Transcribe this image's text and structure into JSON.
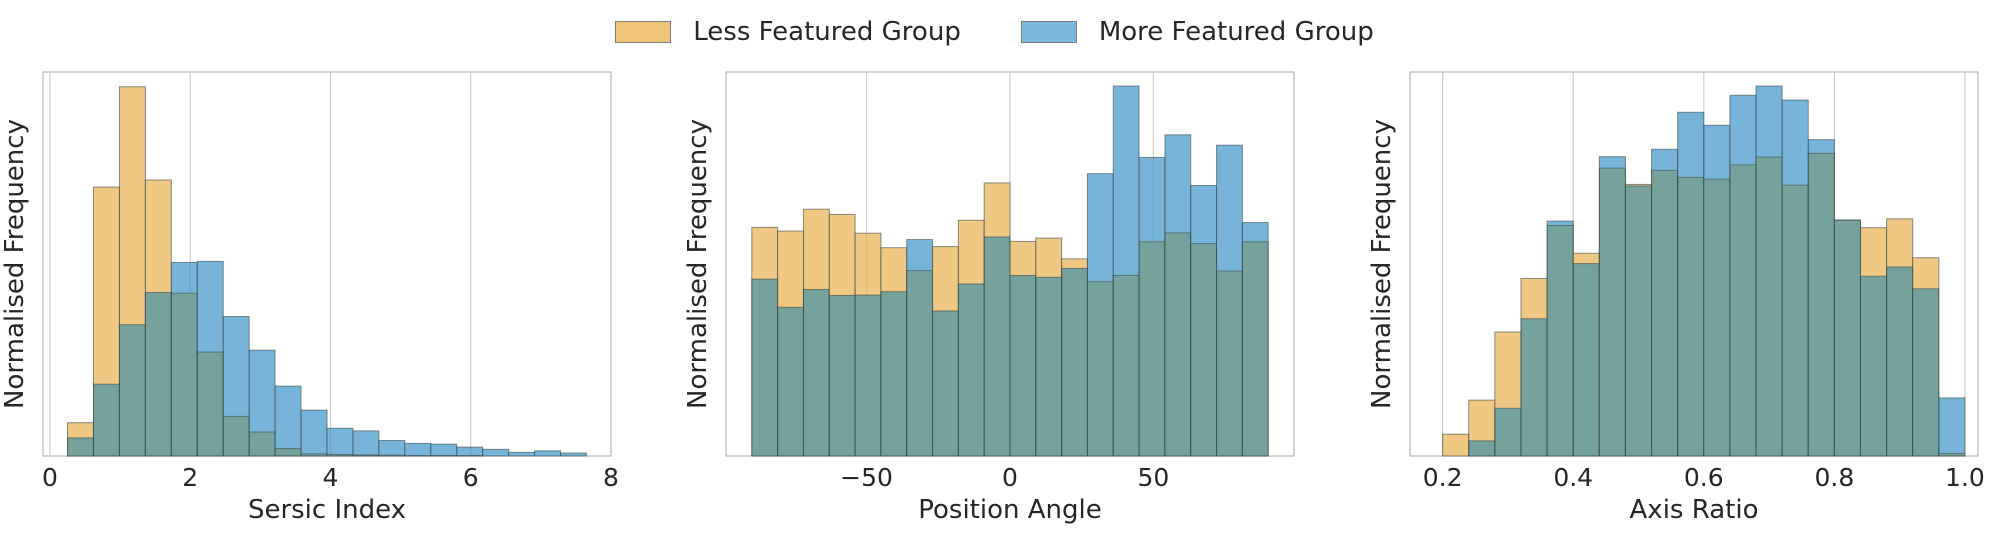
{
  "legend": {
    "less_label": "Less Featured Group",
    "more_label": "More Featured Group"
  },
  "colors": {
    "less": "#e8b04f",
    "more": "#3d94c9",
    "overlap": "#75a29c",
    "bar_edge": "#3c4a48",
    "grid": "#cccccc",
    "frame": "#b8b8b8"
  },
  "chart_data": [
    {
      "type": "bar",
      "xlabel": "Sersic Index",
      "ylabel": "Normalised Frequency",
      "xlim": [
        -0.1,
        8.0
      ],
      "ylim": [
        0,
        1.0
      ],
      "xticks": [
        0,
        2,
        4,
        6,
        8
      ],
      "xtick_labels": [
        "0",
        "2",
        "4",
        "6",
        "8"
      ],
      "grid": "vertical",
      "bin_edges": [
        0.25,
        0.62,
        0.99,
        1.36,
        1.73,
        2.1,
        2.47,
        2.84,
        3.21,
        3.58,
        3.95,
        4.32,
        4.69,
        5.06,
        5.43,
        5.8,
        6.17,
        6.54,
        6.91,
        7.28,
        7.65
      ],
      "series": [
        {
          "name": "Less Featured Group",
          "values": [
            0.09,
            0.727,
            0.998,
            0.746,
            0.44,
            0.281,
            0.107,
            0.065,
            0.02,
            0.006,
            0.004,
            0.003,
            0.002,
            0.001,
            0.001,
            0.001,
            0.0,
            0.0,
            0.0,
            0.0
          ]
        },
        {
          "name": "More Featured Group",
          "values": [
            0.049,
            0.194,
            0.355,
            0.442,
            0.523,
            0.526,
            0.377,
            0.286,
            0.189,
            0.124,
            0.075,
            0.068,
            0.042,
            0.034,
            0.032,
            0.024,
            0.018,
            0.01,
            0.014,
            0.008
          ]
        }
      ]
    },
    {
      "type": "bar",
      "xlabel": "Position Angle",
      "ylabel": "Normalised Frequency",
      "xlim": [
        -99,
        99
      ],
      "ylim": [
        0,
        1.0
      ],
      "xticks": [
        -50,
        0,
        50
      ],
      "xtick_labels": [
        "−50",
        "0",
        "50"
      ],
      "grid": "vertical",
      "bin_edges": [
        -90,
        -81,
        -72,
        -63,
        -54,
        -45,
        -36,
        -27,
        -18,
        -9,
        0,
        9,
        18,
        27,
        36,
        45,
        54,
        63,
        72,
        81,
        90
      ],
      "series": [
        {
          "name": "Less Featured Group",
          "values": [
            0.618,
            0.608,
            0.667,
            0.653,
            0.602,
            0.563,
            0.501,
            0.566,
            0.637,
            0.738,
            0.58,
            0.589,
            0.533,
            0.471,
            0.488,
            0.579,
            0.603,
            0.574,
            0.5,
            0.579
          ]
        },
        {
          "name": "More Featured Group",
          "values": [
            0.478,
            0.402,
            0.45,
            0.434,
            0.435,
            0.444,
            0.585,
            0.392,
            0.465,
            0.592,
            0.488,
            0.483,
            0.507,
            0.763,
            1.0,
            0.807,
            0.868,
            0.731,
            0.84,
            0.631
          ]
        }
      ]
    },
    {
      "type": "bar",
      "xlabel": "Axis Ratio",
      "ylabel": "Normalised Frequency",
      "xlim": [
        0.15,
        1.02
      ],
      "ylim": [
        0,
        1.0
      ],
      "xticks": [
        0.2,
        0.4,
        0.6,
        0.8,
        1.0
      ],
      "xtick_labels": [
        "0.2",
        "0.4",
        "0.6",
        "0.8",
        "1.0"
      ],
      "grid": "vertical",
      "bin_edges": [
        0.2,
        0.24,
        0.28,
        0.32,
        0.36,
        0.4,
        0.44,
        0.48,
        0.52,
        0.56,
        0.6,
        0.64,
        0.68,
        0.72,
        0.76,
        0.8,
        0.84,
        0.88,
        0.92,
        0.96,
        1.0
      ],
      "series": [
        {
          "name": "Less Featured Group",
          "values": [
            0.059,
            0.151,
            0.335,
            0.48,
            0.623,
            0.548,
            0.778,
            0.734,
            0.772,
            0.753,
            0.748,
            0.787,
            0.808,
            0.732,
            0.818,
            0.637,
            0.617,
            0.641,
            0.536,
            0.007
          ]
        },
        {
          "name": "More Featured Group",
          "values": [
            0.0,
            0.041,
            0.129,
            0.371,
            0.635,
            0.52,
            0.809,
            0.73,
            0.829,
            0.929,
            0.894,
            0.975,
            1.0,
            0.962,
            0.855,
            0.638,
            0.486,
            0.511,
            0.452,
            0.157
          ]
        }
      ]
    }
  ]
}
